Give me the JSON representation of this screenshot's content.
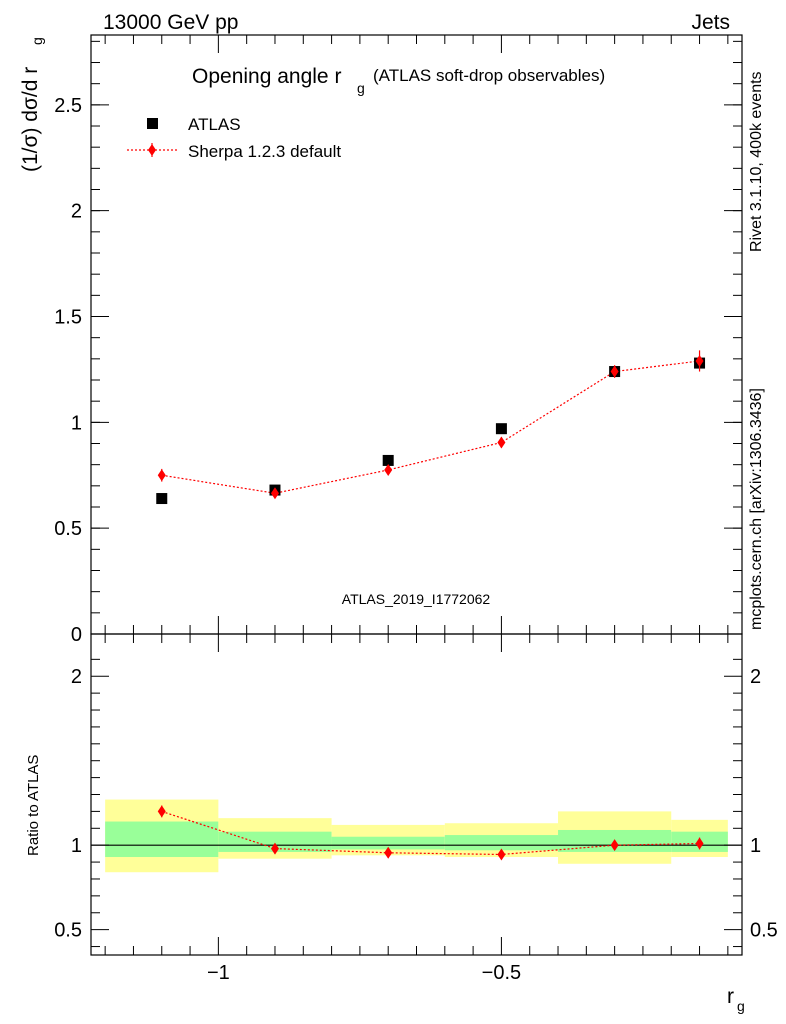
{
  "header": {
    "left": "13000 GeV pp",
    "right": "Jets"
  },
  "side_labels": {
    "rivet": "Rivet 3.1.10,  400k events",
    "mcplots": "mcplots.cern.ch [arXiv:1306.3436]"
  },
  "chart_data": {
    "type": "scatter",
    "title_main": "Opening angle r",
    "title_sub": "g",
    "title_paren": "(ATLAS soft-drop observables)",
    "analysis_id": "ATLAS_2019_I1772062",
    "ylabel": "(1/σ) dσ/d r",
    "ylabel_sub": "g",
    "xlabel": "r",
    "xlabel_sub": "g",
    "xlim": [
      -1.225,
      -0.075
    ],
    "ylim": [
      0,
      2.83
    ],
    "ratio_ylabel": "Ratio to ATLAS",
    "ratio_ylim": [
      0.35,
      2.25
    ],
    "x_ticks": [
      {
        "value": -1.0,
        "label": "−1"
      },
      {
        "value": -0.5,
        "label": "−0.5"
      }
    ],
    "y_ticks": [
      {
        "value": 0.5,
        "label": "0.5"
      },
      {
        "value": 1.0,
        "label": "1"
      },
      {
        "value": 1.5,
        "label": "1.5"
      },
      {
        "value": 2.0,
        "label": "2"
      },
      {
        "value": 2.5,
        "label": "2.5"
      },
      {
        "value": 0,
        "label": "0"
      }
    ],
    "ratio_y_ticks": [
      {
        "value": 0.5,
        "label": "0.5"
      },
      {
        "value": 1.0,
        "label": "1"
      },
      {
        "value": 2.0,
        "label": "2"
      }
    ],
    "bins": [
      {
        "lo": -1.2,
        "hi": -1.0
      },
      {
        "lo": -1.0,
        "hi": -0.8
      },
      {
        "lo": -0.8,
        "hi": -0.6
      },
      {
        "lo": -0.6,
        "hi": -0.4
      },
      {
        "lo": -0.4,
        "hi": -0.2
      },
      {
        "lo": -0.2,
        "hi": -0.1
      }
    ],
    "legend_position": "top-left",
    "series": [
      {
        "name": "ATLAS",
        "color": "#000000",
        "marker": "square",
        "x": [
          -1.1,
          -0.9,
          -0.7,
          -0.5,
          -0.3,
          -0.15
        ],
        "y": [
          0.64,
          0.68,
          0.82,
          0.97,
          1.24,
          1.28
        ]
      },
      {
        "name": "Sherpa 1.2.3 default",
        "color": "#ff0000",
        "marker": "diamond",
        "x": [
          -1.1,
          -0.9,
          -0.7,
          -0.5,
          -0.3,
          -0.15
        ],
        "y": [
          0.75,
          0.665,
          0.775,
          0.905,
          1.24,
          1.29
        ],
        "yerr": [
          0.03,
          0.015,
          0.02,
          0.025,
          0.03,
          0.05
        ]
      }
    ],
    "ratio": {
      "x": [
        -1.1,
        -0.9,
        -0.7,
        -0.5,
        -0.3,
        -0.15
      ],
      "y": [
        1.2,
        0.98,
        0.955,
        0.945,
        1.0,
        1.01
      ],
      "yerr": [
        0.035,
        0.03,
        0.03,
        0.025,
        0.02,
        0.035
      ],
      "band_stat": [
        [
          0.93,
          1.14
        ],
        [
          0.96,
          1.08
        ],
        [
          0.975,
          1.05
        ],
        [
          0.97,
          1.06
        ],
        [
          0.96,
          1.09
        ],
        [
          0.96,
          1.08
        ]
      ],
      "band_total": [
        [
          0.84,
          1.27
        ],
        [
          0.92,
          1.16
        ],
        [
          0.94,
          1.12
        ],
        [
          0.93,
          1.13
        ],
        [
          0.89,
          1.2
        ],
        [
          0.93,
          1.15
        ]
      ],
      "band_stat_color": "#99ff99",
      "band_total_color": "#ffff99"
    }
  }
}
